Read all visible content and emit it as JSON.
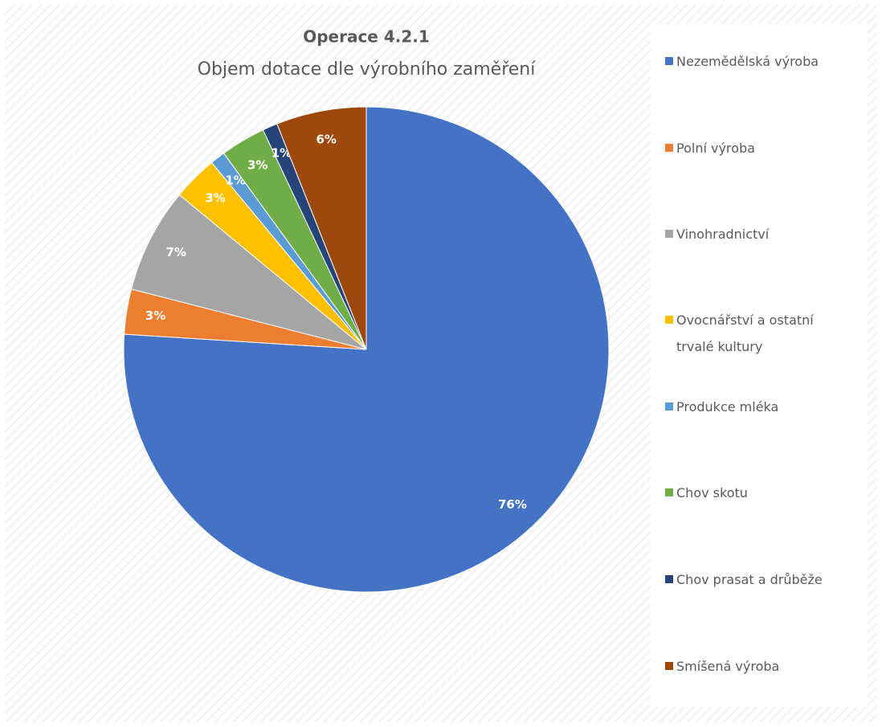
{
  "chart_data": {
    "type": "pie",
    "title": "Operace 4.2.1",
    "subtitle": "Objem dotace dle výrobního zaměření",
    "categories": [
      "Nezemědělská výroba",
      "Polní výroba",
      "Vinohradnictví",
      "Ovocnářství a ostatní trvalé kultury",
      "Produkce mléka",
      "Chov skotu",
      "Chov prasat a drůběže",
      "Smíšená výroba"
    ],
    "values": [
      76,
      3,
      7,
      3,
      1,
      3,
      1,
      6
    ],
    "value_labels": [
      "76%",
      "3%",
      "7%",
      "3%",
      "1%",
      "3%",
      "1%",
      "6%"
    ],
    "colors": [
      "#4472c4",
      "#ed7d31",
      "#a5a5a5",
      "#ffc000",
      "#5b9bd5",
      "#70ad47",
      "#264478",
      "#9e480e"
    ],
    "legend": "right"
  }
}
